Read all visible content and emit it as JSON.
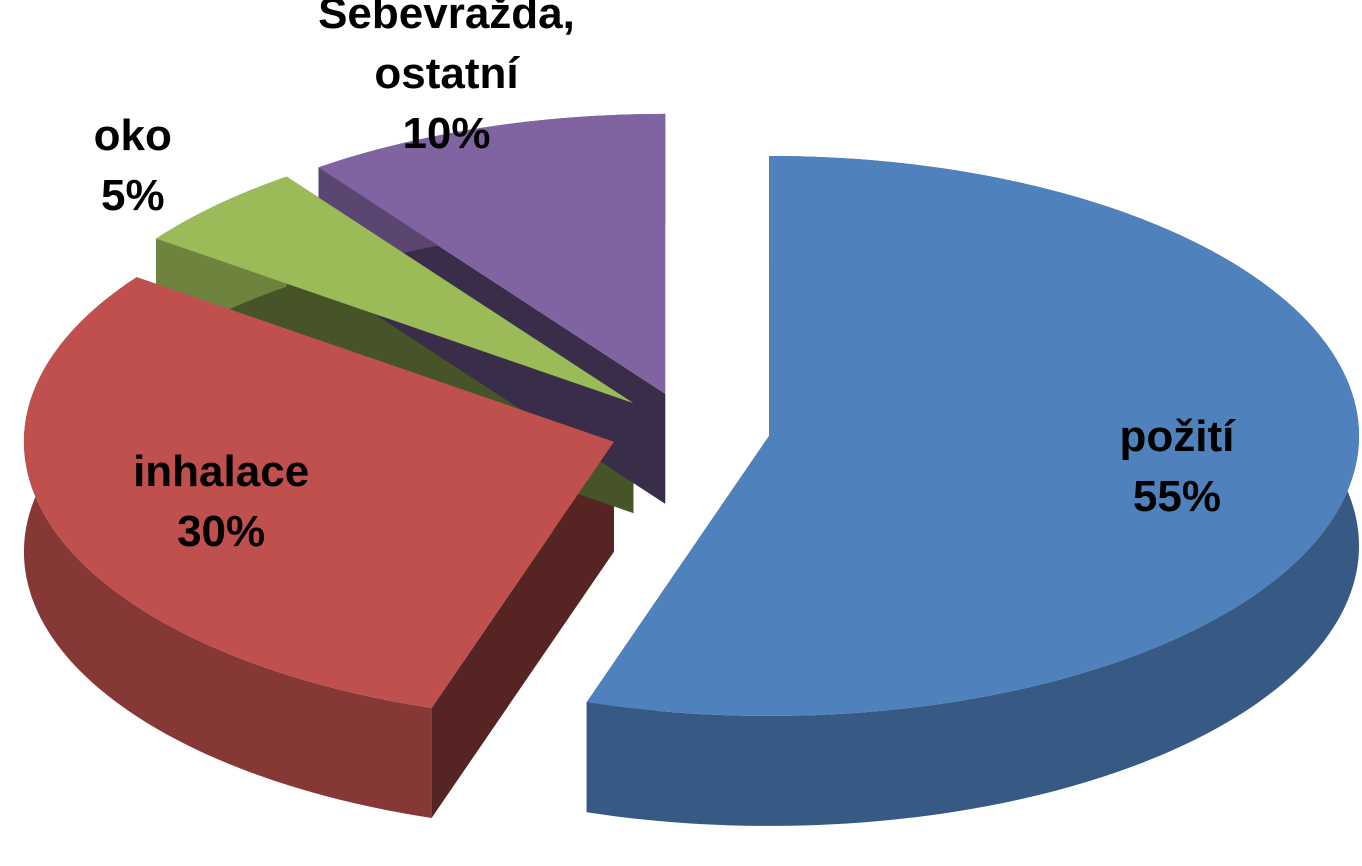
{
  "chart_data": {
    "type": "pie",
    "categories": [
      "požití",
      "inhalace",
      "oko",
      "Sebevražda, ostatní"
    ],
    "values": [
      55,
      30,
      5,
      10
    ],
    "value_labels": [
      "55%",
      "30%",
      "5%",
      "10%"
    ],
    "colors": [
      "#4f81bd",
      "#c0504d",
      "#9bbb59",
      "#8064a2"
    ]
  }
}
